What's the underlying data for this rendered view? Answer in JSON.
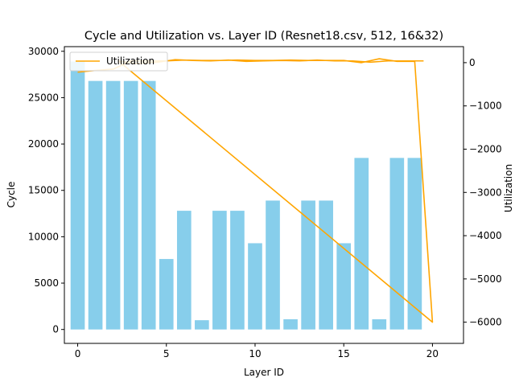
{
  "chart_data": {
    "type": "bar+line",
    "title": "Cycle and Utilization vs. Layer ID (Resnet18.csv, 512, 16&32)",
    "xlabel": "Layer ID",
    "ylabel": "Cycle",
    "y2label": "Utilization",
    "xlim": [
      -0.75,
      21.75
    ],
    "ylim": [
      -1500,
      30500
    ],
    "y2lim": [
      -6490,
      370
    ],
    "xticks": [
      0,
      5,
      10,
      15,
      20
    ],
    "yticks": [
      0,
      5000,
      10000,
      15000,
      20000,
      25000,
      30000
    ],
    "y2ticks": [
      0,
      -1000,
      -2000,
      -3000,
      -4000,
      -5000,
      -6000
    ],
    "bar_color": "#87ceeb",
    "line_color": "#ffa500",
    "legend": {
      "position": "top-left",
      "entries": [
        "Utilization"
      ]
    },
    "bars": {
      "name": "Cycle",
      "x": [
        0,
        1,
        2,
        3,
        4,
        5,
        6,
        7,
        8,
        9,
        10,
        11,
        12,
        13,
        14,
        15,
        16,
        17,
        18,
        19
      ],
      "values": [
        28900,
        26800,
        26800,
        26800,
        26800,
        7600,
        12800,
        1000,
        12800,
        12800,
        9300,
        13900,
        1100,
        13900,
        13900,
        9300,
        18500,
        1100,
        18500,
        18500
      ]
    },
    "line": {
      "name": "Utilization",
      "x": [
        0,
        1,
        2,
        3,
        4,
        5,
        6,
        7,
        8,
        9,
        10,
        11,
        12,
        13,
        14,
        15,
        16,
        17,
        18,
        19,
        20,
        2.3,
        3.3,
        4.5,
        5.5,
        6.5,
        7.5,
        8.5,
        9.5,
        10.5,
        11.5,
        12.5,
        13.5,
        14.5,
        15.5,
        16.5,
        17.5,
        18.5,
        19.5
      ],
      "values": [
        -220,
        -180,
        -150,
        40,
        40,
        40,
        60,
        50,
        50,
        60,
        50,
        50,
        60,
        50,
        50,
        50,
        0,
        90,
        30,
        30,
        -6000,
        40,
        -20,
        10,
        70,
        50,
        40,
        60,
        30,
        40,
        50,
        40,
        60,
        40,
        40,
        10,
        40,
        40,
        40
      ]
    }
  }
}
